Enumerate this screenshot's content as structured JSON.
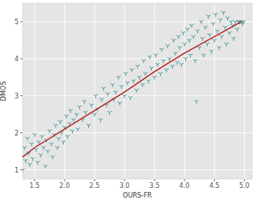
{
  "chart_data": {
    "type": "scatter",
    "x_label": "OURS-FR",
    "y_label": "DMOS",
    "xlim": [
      1.3,
      5.13
    ],
    "ylim": [
      0.75,
      5.5
    ],
    "xticks": [
      1.5,
      {
        "value": 2,
        "label": "2.0"
      },
      2.5,
      {
        "value": 3,
        "label": "3.0"
      },
      3.5,
      {
        "value": 4,
        "label": "4.0"
      },
      4.5,
      {
        "value": 5,
        "label": "5.0"
      }
    ],
    "yticks": [
      1,
      2,
      3,
      4,
      5
    ],
    "grid": true,
    "series": [
      {
        "type": "scatter",
        "color": "#3a9090",
        "marker": "tri_down",
        "x": [
          1.25,
          1.28,
          1.3,
          1.33,
          1.35,
          1.38,
          1.4,
          1.42,
          1.45,
          1.47,
          1.5,
          1.52,
          1.55,
          1.57,
          1.6,
          1.62,
          1.65,
          1.68,
          1.7,
          1.72,
          1.75,
          1.78,
          1.8,
          1.83,
          1.85,
          1.88,
          1.9,
          1.93,
          1.95,
          1.98,
          2.0,
          2.03,
          2.05,
          2.08,
          2.1,
          2.13,
          2.15,
          2.2,
          2.22,
          2.25,
          2.3,
          2.33,
          2.35,
          2.4,
          2.45,
          2.5,
          2.52,
          2.55,
          2.6,
          2.62,
          2.65,
          2.7,
          2.72,
          2.75,
          2.8,
          2.82,
          2.85,
          2.9,
          2.92,
          2.95,
          3.0,
          3.02,
          3.05,
          3.1,
          3.12,
          3.15,
          3.2,
          3.22,
          3.25,
          3.3,
          3.32,
          3.35,
          3.4,
          3.42,
          3.45,
          3.5,
          3.52,
          3.55,
          3.6,
          3.62,
          3.65,
          3.7,
          3.72,
          3.75,
          3.8,
          3.82,
          3.85,
          3.88,
          3.9,
          3.92,
          3.95,
          3.98,
          4.0,
          4.02,
          4.05,
          4.08,
          4.1,
          4.12,
          4.15,
          4.18,
          4.2,
          4.22,
          4.25,
          4.28,
          4.3,
          4.32,
          4.35,
          4.38,
          4.4,
          4.42,
          4.45,
          4.48,
          4.5,
          4.52,
          4.55,
          4.58,
          4.6,
          4.62,
          4.65,
          4.68,
          4.7,
          4.72,
          4.75,
          4.78,
          4.8,
          4.82,
          4.85,
          4.88,
          4.9,
          4.92,
          4.95,
          4.97,
          4.98
        ],
        "values": [
          1.1,
          1.35,
          1.0,
          1.6,
          1.25,
          1.85,
          1.45,
          1.15,
          1.7,
          1.3,
          1.95,
          1.55,
          1.2,
          1.75,
          1.4,
          1.9,
          1.6,
          1.1,
          1.8,
          1.5,
          2.05,
          1.7,
          1.35,
          1.95,
          2.2,
          1.6,
          1.85,
          2.3,
          2.0,
          1.75,
          2.15,
          2.45,
          1.9,
          2.25,
          2.6,
          2.05,
          2.35,
          2.5,
          2.1,
          2.7,
          2.35,
          2.85,
          2.55,
          2.2,
          2.75,
          2.5,
          3.0,
          2.65,
          2.35,
          2.9,
          3.2,
          2.75,
          3.05,
          2.55,
          3.3,
          2.9,
          3.1,
          3.5,
          2.8,
          3.25,
          3.0,
          3.6,
          3.35,
          2.95,
          3.7,
          3.4,
          3.15,
          3.8,
          3.5,
          3.3,
          3.95,
          3.6,
          3.4,
          4.05,
          3.75,
          3.5,
          4.1,
          3.85,
          3.6,
          4.25,
          3.95,
          3.7,
          4.35,
          4.0,
          3.8,
          4.5,
          4.15,
          3.9,
          4.6,
          4.3,
          3.85,
          4.7,
          4.4,
          4.0,
          4.8,
          4.5,
          4.1,
          4.9,
          4.6,
          3.95,
          2.85,
          4.75,
          4.3,
          5.0,
          4.55,
          4.1,
          4.85,
          4.4,
          5.15,
          4.65,
          4.2,
          4.95,
          4.5,
          5.2,
          4.75,
          4.3,
          5.05,
          4.6,
          5.25,
          4.85,
          4.4,
          5.1,
          4.7,
          5.0,
          4.9,
          4.55,
          5.0,
          4.8,
          5.0,
          5.0,
          5.0,
          4.95,
          5.0
        ]
      },
      {
        "type": "line",
        "color": "#b22222",
        "line_style": "solid",
        "x": [
          1.25,
          1.5,
          2,
          2.5,
          3,
          3.5,
          4,
          4.5,
          4.95
        ],
        "values": [
          1.28,
          1.6,
          2.1,
          2.6,
          3.1,
          3.65,
          4.15,
          4.6,
          5.0
        ]
      }
    ]
  }
}
